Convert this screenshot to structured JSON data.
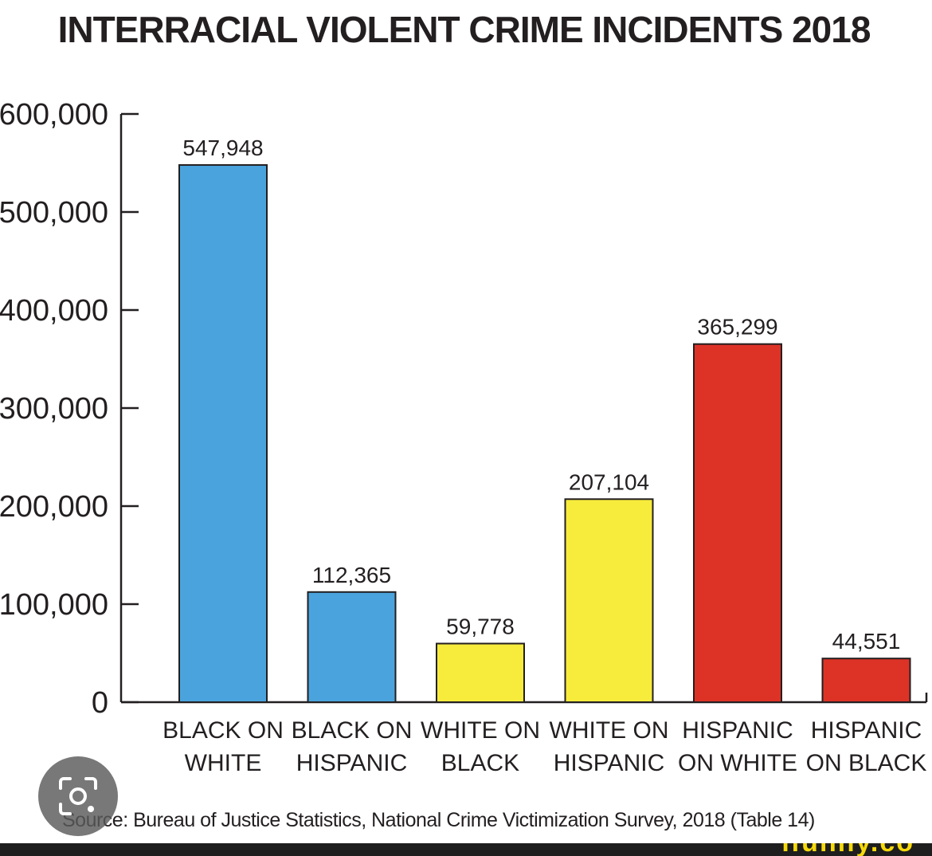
{
  "chart_data": {
    "type": "bar",
    "title": "INTERRACIAL VIOLENT CRIME INCIDENTS 2018",
    "xlabel": "",
    "ylabel": "",
    "ylim": [
      0,
      600000
    ],
    "yticks": [
      0,
      100000,
      200000,
      300000,
      400000,
      500000,
      600000
    ],
    "ytick_labels": [
      "0",
      "100,000",
      "200,000",
      "300,000",
      "400,000",
      "500,000",
      "600,000"
    ],
    "grid": false,
    "legend": "none",
    "categories": [
      [
        "BLACK ON",
        "WHITE"
      ],
      [
        "BLACK ON",
        "HISPANIC"
      ],
      [
        "WHITE ON",
        "BLACK"
      ],
      [
        "WHITE ON",
        "HISPANIC"
      ],
      [
        "HISPANIC",
        "ON WHITE"
      ],
      [
        "HISPANIC",
        "ON BLACK"
      ]
    ],
    "values": [
      547948,
      112365,
      59778,
      207104,
      365299,
      44551
    ],
    "value_labels": [
      "547,948",
      "112,365",
      "59,778",
      "207,104",
      "365,299",
      "44,551"
    ],
    "colors": [
      "#4aa3dc",
      "#4aa3dc",
      "#f7ec3c",
      "#f7ec3c",
      "#dd3327",
      "#dd3327"
    ],
    "source": "Source: Bureau of Justice Statistics, National Crime Victimization Survey, 2018 (Table 14)"
  },
  "overlay": {
    "lens_icon": "camera-search-icon",
    "watermark": "ifunny.co"
  }
}
